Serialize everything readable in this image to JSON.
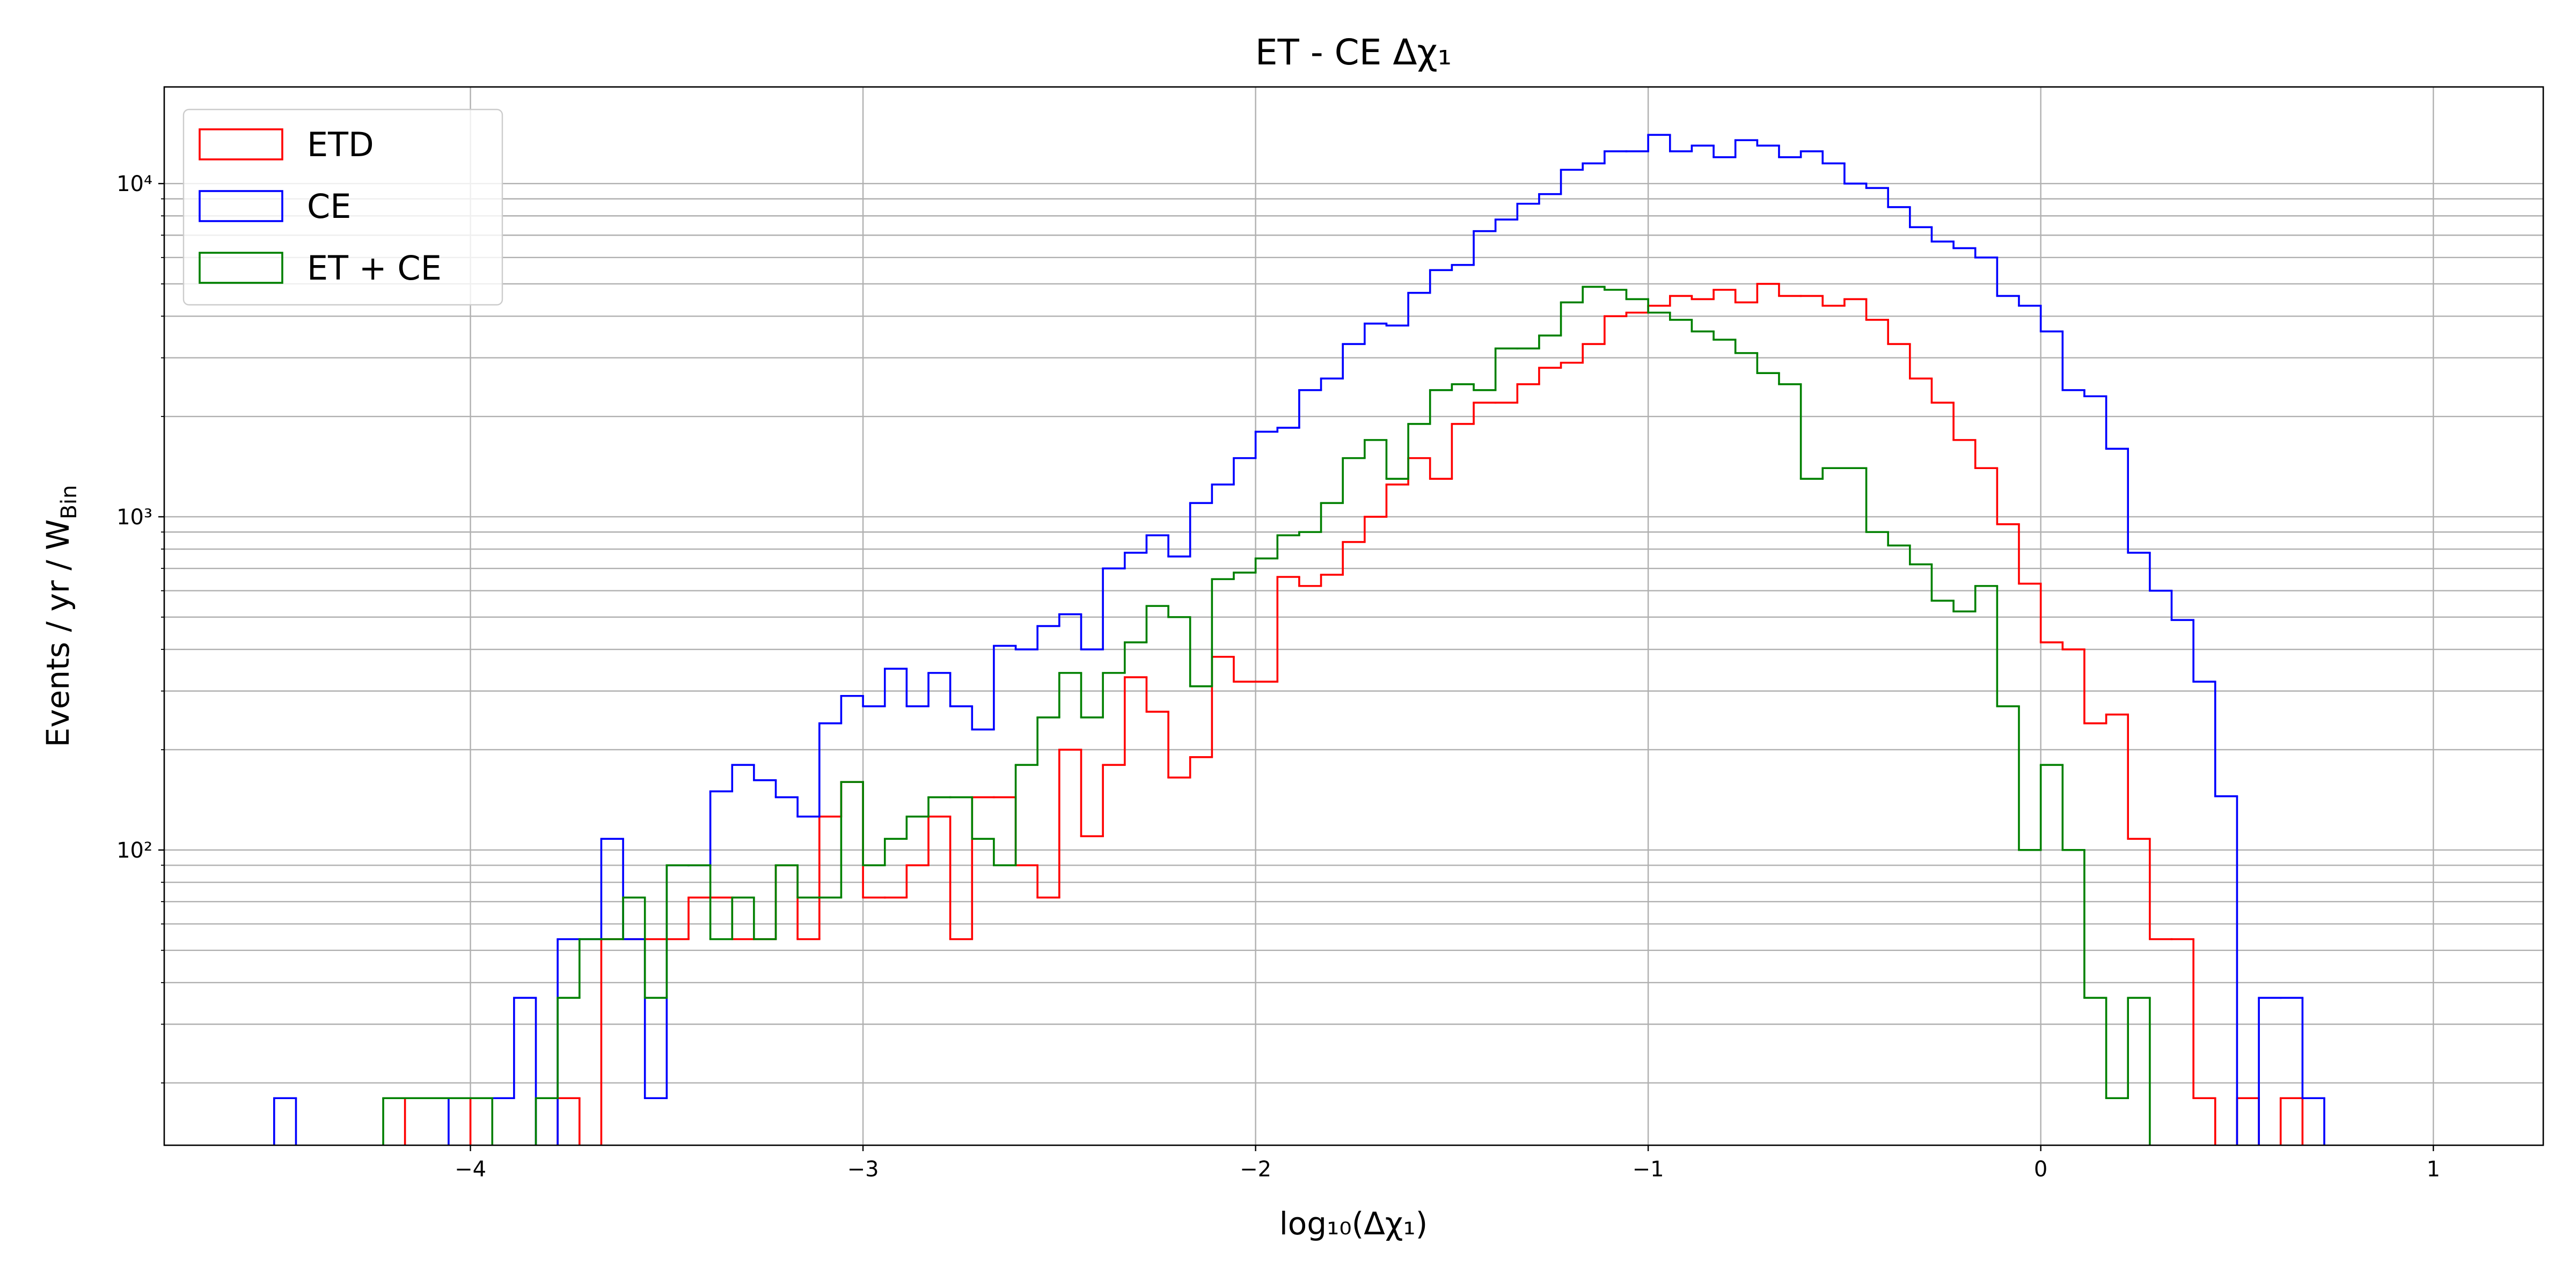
{
  "chart_data": {
    "type": "histogram",
    "title": "ET - CE Δχ₁",
    "xlabel": "log₁₀(Δχ₁)",
    "ylabel": "Events / yr / W",
    "ylabel_sub": "Bin",
    "bins": [
      -4.5,
      -4.4444,
      -4.3889,
      -4.3333,
      -4.2778,
      -4.2222,
      -4.1667,
      -4.1111,
      -4.0556,
      -4,
      -3.9444,
      -3.8889,
      -3.8333,
      -3.7778,
      -3.7222,
      -3.6667,
      -3.6111,
      -3.5556,
      -3.5,
      -3.4444,
      -3.3889,
      -3.3333,
      -3.2778,
      -3.2222,
      -3.1667,
      -3.1111,
      -3.0556,
      -3,
      -2.9444,
      -2.8889,
      -2.8333,
      -2.7778,
      -2.7222,
      -2.6667,
      -2.6111,
      -2.5556,
      -2.5,
      -2.4444,
      -2.3889,
      -2.3333,
      -2.2778,
      -2.2222,
      -2.1667,
      -2.1111,
      -2.0556,
      -2,
      -1.9444,
      -1.8889,
      -1.8333,
      -1.7778,
      -1.7222,
      -1.6667,
      -1.6111,
      -1.5556,
      -1.5,
      -1.4444,
      -1.3889,
      -1.3333,
      -1.2778,
      -1.2222,
      -1.1667,
      -1.1111,
      -1.0556,
      -1,
      -0.9444,
      -0.8889,
      -0.8333,
      -0.7778,
      -0.7222,
      -0.6667,
      -0.6111,
      -0.5556,
      -0.5,
      -0.4444,
      -0.3889,
      -0.3333,
      -0.2778,
      -0.2222,
      -0.1667,
      -0.1111,
      -0.0556,
      0,
      0.0556,
      0.1111,
      0.1667,
      0.2222,
      0.2778,
      0.3333,
      0.3889,
      0.4444,
      0.5,
      0.5556,
      0.6111,
      0.6667,
      0.7222
    ],
    "series": [
      {
        "name": "ETD",
        "color": "#ff0000",
        "values": [
          0,
          0,
          0,
          0,
          0,
          0,
          18,
          18,
          18,
          0,
          0,
          0,
          0,
          18,
          0,
          54,
          54,
          54,
          54,
          72,
          72,
          54,
          54,
          90,
          54,
          126,
          160,
          72,
          72,
          90,
          126,
          54,
          144,
          144,
          90,
          72,
          200,
          110,
          180,
          330,
          260,
          165,
          190,
          380,
          320,
          320,
          660,
          620,
          670,
          840,
          1000,
          1250,
          1500,
          1300,
          1900,
          2200,
          2200,
          2500,
          2800,
          2900,
          3300,
          4000,
          4100,
          4300,
          4600,
          4500,
          4800,
          4400,
          5000,
          4600,
          4600,
          4300,
          4500,
          3900,
          3300,
          2600,
          2200,
          1700,
          1400,
          950,
          630,
          420,
          400,
          240,
          255,
          108,
          54,
          54,
          18,
          0,
          18,
          0,
          18,
          0
        ]
      },
      {
        "name": "CE",
        "color": "#0000ff",
        "values": [
          18,
          0,
          0,
          0,
          0,
          0,
          0,
          0,
          18,
          18,
          18,
          36,
          0,
          54,
          54,
          108,
          54,
          18,
          90,
          90,
          150,
          180,
          162,
          144,
          126,
          240,
          290,
          270,
          350,
          270,
          340,
          270,
          230,
          410,
          400,
          470,
          510,
          400,
          700,
          780,
          880,
          760,
          1100,
          1250,
          1500,
          1800,
          1850,
          2400,
          2600,
          3300,
          3800,
          3750,
          4700,
          5500,
          5700,
          7200,
          7800,
          8700,
          9300,
          11000,
          11500,
          12500,
          12500,
          14000,
          12500,
          13000,
          12000,
          13500,
          13000,
          12000,
          12500,
          11500,
          10000,
          9700,
          8500,
          7400,
          6700,
          6400,
          6000,
          4600,
          4300,
          3600,
          2400,
          2300,
          1600,
          780,
          600,
          490,
          320,
          145,
          0,
          36,
          36,
          18
        ]
      },
      {
        "name": "ET + CE",
        "color": "#008000",
        "values": [
          0,
          0,
          0,
          0,
          0,
          18,
          18,
          18,
          18,
          18,
          0,
          0,
          18,
          36,
          54,
          54,
          72,
          36,
          90,
          90,
          54,
          72,
          54,
          90,
          72,
          72,
          160,
          90,
          108,
          126,
          144,
          144,
          108,
          90,
          180,
          250,
          340,
          250,
          340,
          420,
          540,
          500,
          310,
          650,
          680,
          750,
          880,
          900,
          1100,
          1500,
          1700,
          1300,
          1900,
          2400,
          2500,
          2400,
          3200,
          3200,
          3500,
          4400,
          4900,
          4800,
          4500,
          4100,
          3900,
          3600,
          3400,
          3100,
          2700,
          2500,
          1300,
          1400,
          1400,
          900,
          820,
          720,
          560,
          520,
          620,
          270,
          100,
          180,
          100,
          36,
          18,
          36,
          0,
          0,
          0,
          0,
          0,
          0,
          0,
          0
        ]
      }
    ],
    "xlim": [
      -4.78,
      1.28
    ],
    "xticks": [
      {
        "value": -4,
        "label": "−4"
      },
      {
        "value": -3,
        "label": "−3"
      },
      {
        "value": -2,
        "label": "−2"
      },
      {
        "value": -1,
        "label": "−1"
      },
      0,
      1
    ],
    "ylim": [
      13,
      19500
    ],
    "yticks": [
      {
        "value": 100,
        "label": "10²"
      },
      {
        "value": 1000,
        "label": "10³"
      },
      {
        "value": 10000,
        "label": "10⁴"
      }
    ],
    "yminorticks": [
      20,
      30,
      40,
      50,
      60,
      70,
      80,
      90,
      200,
      300,
      400,
      500,
      600,
      700,
      800,
      900,
      2000,
      3000,
      4000,
      5000,
      6000,
      7000,
      8000,
      9000
    ],
    "log_y": true,
    "grid": true,
    "legend": "upper left"
  }
}
